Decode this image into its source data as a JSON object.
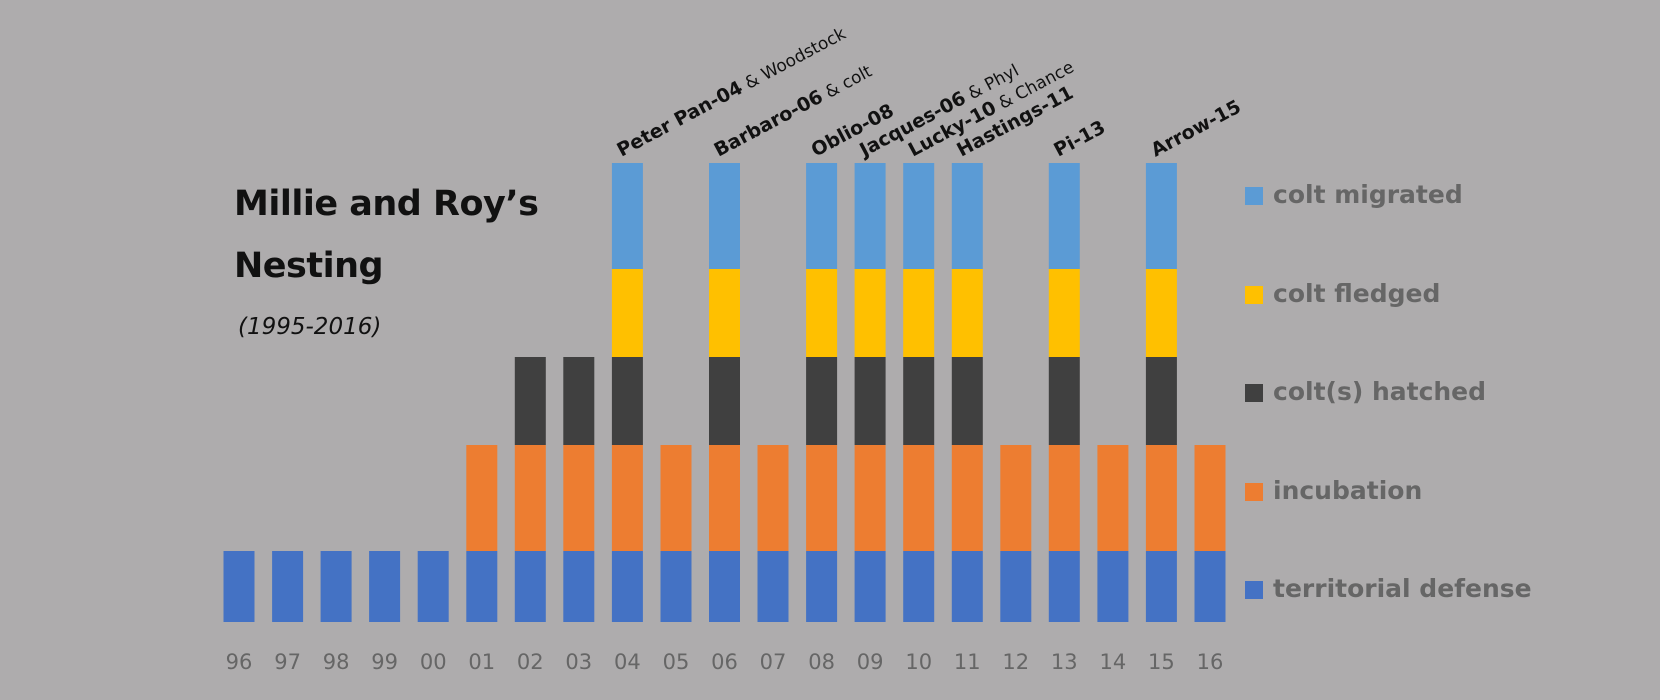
{
  "chart_data": {
    "type": "bar",
    "stacked": true,
    "title": [
      "Millie and Roy’s",
      "Nesting"
    ],
    "subtitle": "(1995-2016)",
    "categories": [
      "96",
      "97",
      "98",
      "99",
      "00",
      "01",
      "02",
      "03",
      "04",
      "05",
      "06",
      "07",
      "08",
      "09",
      "10",
      "11",
      "12",
      "13",
      "14",
      "15",
      "16"
    ],
    "stages": [
      {
        "name": "territorial defense",
        "color": "#4472c4"
      },
      {
        "name": "incubation",
        "color": "#ed7d31"
      },
      {
        "name": "colt(s) hatched",
        "color": "#404040"
      },
      {
        "name": "colt fledged",
        "color": "#ffc000"
      },
      {
        "name": "colt migrated",
        "color": "#5b9bd5"
      }
    ],
    "stage_reached": [
      1,
      1,
      1,
      1,
      1,
      2,
      3,
      3,
      5,
      2,
      5,
      2,
      5,
      5,
      5,
      5,
      2,
      5,
      2,
      5,
      2
    ],
    "bar_labels": [
      {
        "category": "04",
        "bold": "Peter Pan-04",
        "normal": " & Woodstock"
      },
      {
        "category": "06",
        "bold": "Barbaro-06",
        "normal": " & colt"
      },
      {
        "category": "08",
        "bold": "Oblio-08",
        "normal": ""
      },
      {
        "category": "09",
        "bold": "Jacques-06",
        "normal": " & Phyl"
      },
      {
        "category": "10",
        "bold": "Lucky-10",
        "normal": " & Chance"
      },
      {
        "category": "11",
        "bold": "Hastings-11",
        "normal": ""
      },
      {
        "category": "13",
        "bold": "Pi-13",
        "normal": ""
      },
      {
        "category": "15",
        "bold": "Arrow-15",
        "normal": ""
      }
    ],
    "legend_position": "right",
    "grid": false
  }
}
